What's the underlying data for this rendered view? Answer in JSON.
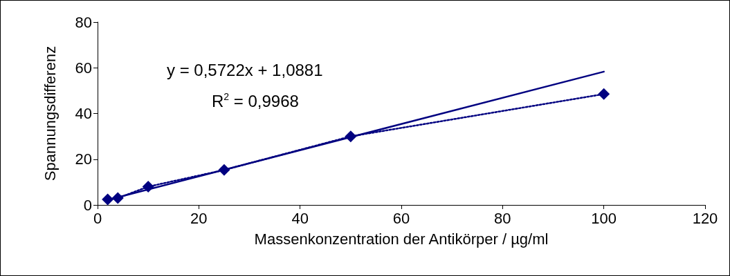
{
  "chart_data": {
    "type": "line",
    "xlabel": "Massenkonzentration der Antikörper / µg/ml",
    "ylabel": "Spannungsdifferenz",
    "x": [
      2,
      4,
      10,
      25,
      50,
      100
    ],
    "series": [
      {
        "color": "#000080",
        "values": [
          2.4,
          3,
          8,
          15.3,
          30,
          48.5
        ],
        "marker": "diamond",
        "line_style": "dotted"
      },
      {
        "color": "#000080",
        "x": [
          2,
          100
        ],
        "values": [
          2.2,
          58.3
        ],
        "marker": "none",
        "line_style": "solid"
      }
    ],
    "annotations": [
      "y = 0,5722x + 1,0881",
      "R$^{2}$ = 0,9968"
    ],
    "xlim": [
      0,
      120
    ],
    "xticks": [
      0,
      20,
      40,
      60,
      80,
      100,
      120
    ],
    "ylim": [
      0,
      80
    ],
    "yticks": [
      0,
      20,
      40,
      60,
      80
    ],
    "grid": false
  }
}
